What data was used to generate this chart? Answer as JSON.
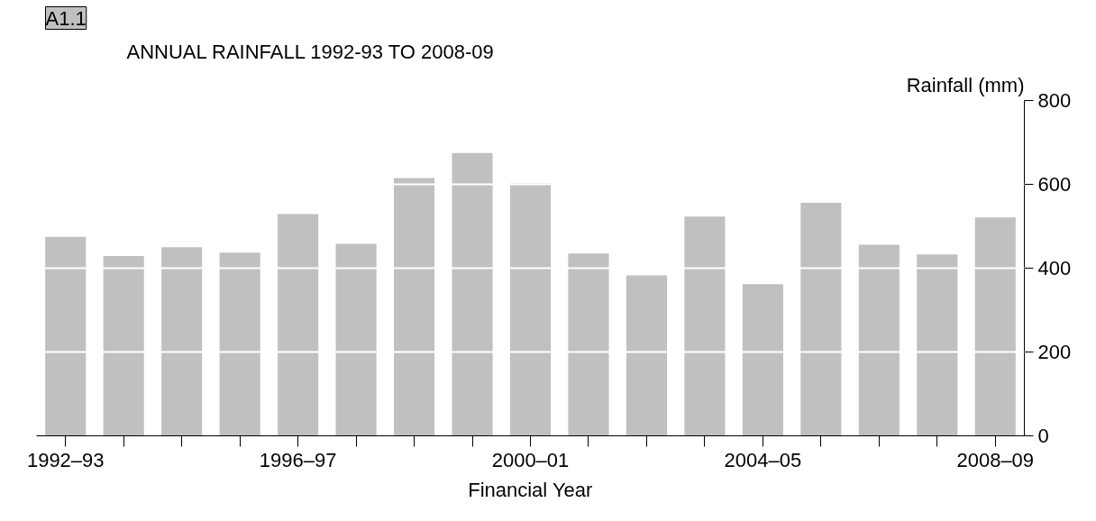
{
  "chart_data": {
    "type": "bar",
    "title": "ANNUAL RAINFALL 1992-93 TO 2008-09",
    "xlabel": "Financial Year",
    "ylabel": "Rainfall (mm)",
    "annotations": [
      "A1.1"
    ],
    "categories": [
      "1992–93",
      null,
      null,
      null,
      "1996–97",
      null,
      null,
      null,
      "2000–01",
      null,
      null,
      null,
      "2004–05",
      null,
      null,
      null,
      "2008–09"
    ],
    "values": [
      475,
      429,
      450,
      437,
      529,
      458,
      615,
      675,
      602,
      435,
      383,
      523,
      362,
      556,
      456,
      433,
      521
    ],
    "color": "#c0c0c0",
    "ylim": [
      0,
      800
    ],
    "yticks": [
      0,
      200,
      400,
      600,
      800
    ],
    "grid": "y"
  }
}
